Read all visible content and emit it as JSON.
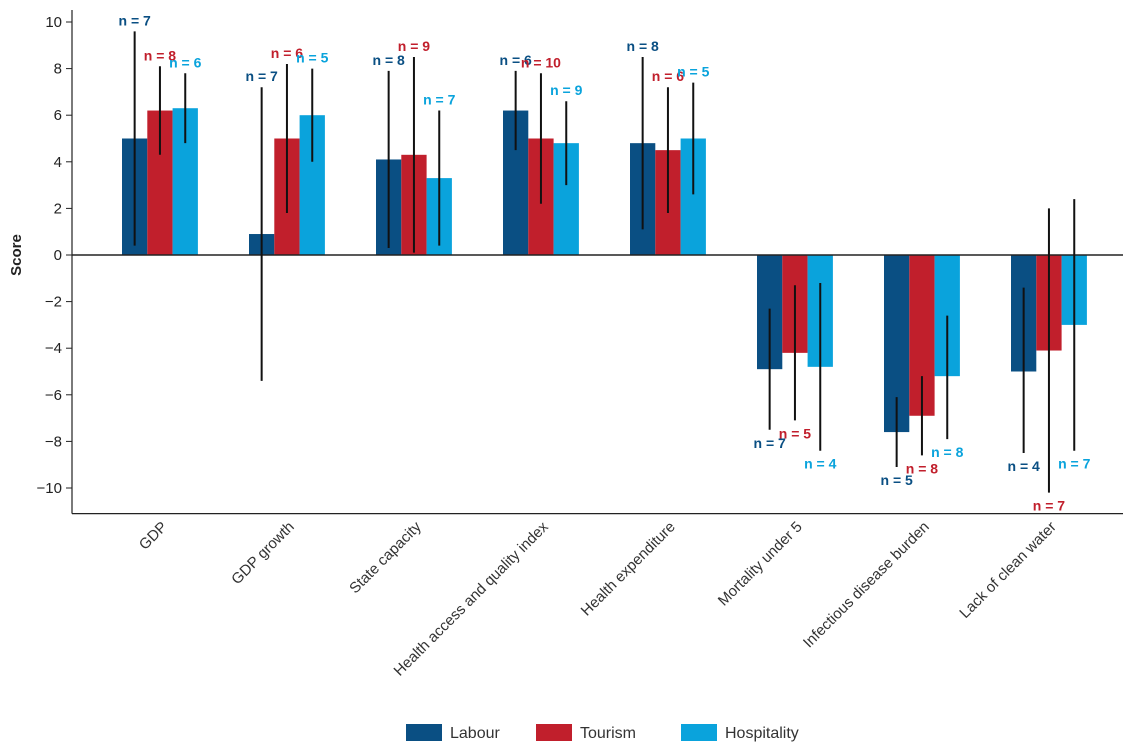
{
  "chart_data": {
    "type": "bar",
    "title": "",
    "xlabel": "",
    "ylabel": "Score",
    "ylim": [
      -11.1,
      10.5
    ],
    "yticks": [
      -10,
      -8,
      -6,
      -4,
      -2,
      0,
      2,
      4,
      6,
      8,
      10
    ],
    "ytick_labels": [
      "−10",
      "−8",
      "−6",
      "−4",
      "−2",
      "0",
      "2",
      "4",
      "6",
      "8",
      "10"
    ],
    "grid": false,
    "legend_position": "bottom-center",
    "categories": [
      "GDP",
      "GDP growth",
      "State capacity",
      "Health access and quality index",
      "Health expenditure",
      "Mortality under 5",
      "Infectious disease burden",
      "Lack of clean water"
    ],
    "series": [
      {
        "name": "Labour",
        "color": "#0a4f83",
        "values": [
          5.0,
          0.9,
          4.1,
          6.2,
          4.8,
          -4.9,
          -7.6,
          -5.0
        ],
        "err_low": [
          0.4,
          -5.4,
          0.3,
          4.5,
          1.1,
          -7.5,
          -9.1,
          -8.5
        ],
        "err_high": [
          9.6,
          7.2,
          7.9,
          7.9,
          8.5,
          -2.3,
          -6.1,
          -1.4
        ],
        "n_labels": [
          "n = 7",
          "n = 7",
          "n = 8",
          "n = 6",
          "n = 8",
          "n = 7",
          "n = 5",
          "n = 4"
        ]
      },
      {
        "name": "Tourism",
        "color": "#c11f2c",
        "values": [
          6.2,
          5.0,
          4.3,
          5.0,
          4.5,
          -4.2,
          -6.9,
          -4.1
        ],
        "err_low": [
          4.3,
          1.8,
          0.1,
          2.2,
          1.8,
          -7.1,
          -8.6,
          -10.2
        ],
        "err_high": [
          8.1,
          8.2,
          8.5,
          7.8,
          7.2,
          -1.3,
          -5.2,
          2.0
        ],
        "n_labels": [
          "n = 8",
          "n = 6",
          "n = 9",
          "n = 10",
          "n = 6",
          "n = 5",
          "n = 8",
          "n = 7"
        ]
      },
      {
        "name": "Hospitality",
        "color": "#0aa3dc",
        "values": [
          6.3,
          6.0,
          3.3,
          4.8,
          5.0,
          -4.8,
          -5.2,
          -3.0
        ],
        "err_low": [
          4.8,
          4.0,
          0.4,
          3.0,
          2.6,
          -8.4,
          -7.9,
          -8.4
        ],
        "err_high": [
          7.8,
          8.0,
          6.2,
          6.6,
          7.4,
          -1.2,
          -2.6,
          2.4
        ],
        "n_labels": [
          "n = 6",
          "n = 5",
          "n = 7",
          "n = 9",
          "n = 5",
          "n = 4",
          "n = 8",
          "n = 7"
        ]
      }
    ]
  }
}
